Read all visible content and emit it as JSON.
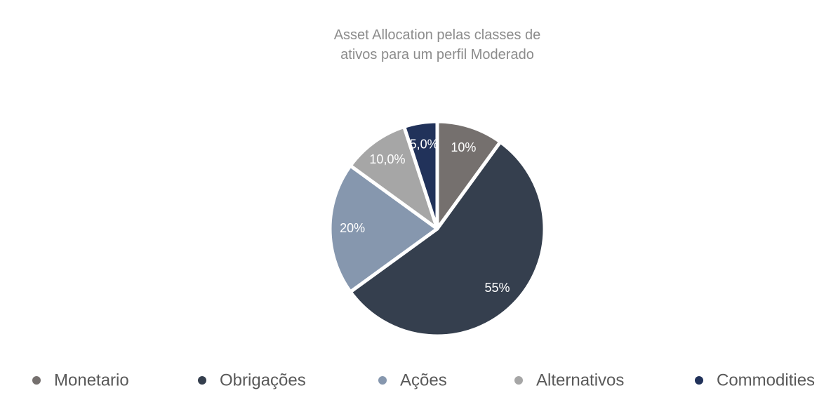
{
  "chart_data": {
    "type": "pie",
    "title": "Asset Allocation pelas classes de ativos para um perfil Moderado",
    "categories": [
      "Monetario",
      "Obrigações",
      "Ações",
      "Alternativos",
      "Commodities"
    ],
    "values": [
      10,
      55,
      20,
      10,
      5
    ],
    "value_labels": [
      "10%",
      "55%",
      "20%",
      "10,0%",
      "5,0%"
    ],
    "colors": [
      "#75706e",
      "#353f4e",
      "#8697ae",
      "#a6a6a6",
      "#21325a"
    ],
    "legend": "bottom"
  }
}
